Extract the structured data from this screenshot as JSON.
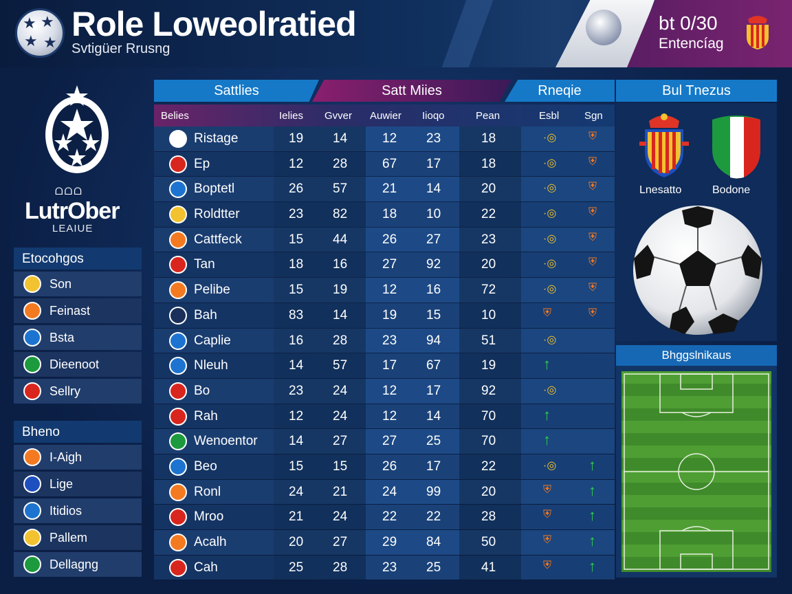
{
  "header": {
    "title": "Role Loweolratied",
    "subtitle": "Svtigüer Rrusng",
    "date": "bt 0/30",
    "status": "Entencíag"
  },
  "league": {
    "name": "LutrOber",
    "sub": "LEAIUE",
    "icons": "ᗝᗝᗝ"
  },
  "sidebar": {
    "groups": [
      {
        "title": "Etocohgos",
        "items": [
          {
            "label": "Son",
            "icon": "ring-icon",
            "color": "#f2c230"
          },
          {
            "label": "Feinast",
            "icon": "shield-icon",
            "color": "#f47a22"
          },
          {
            "label": "Bsta",
            "icon": "figure-icon",
            "color": "#1d74d0"
          },
          {
            "label": "Dieenoot",
            "icon": "flag-icon",
            "color": "#1d9a3e"
          },
          {
            "label": "Sellry",
            "icon": "badge-icon",
            "color": "#d8261e"
          }
        ]
      },
      {
        "title": "Bheno",
        "items": [
          {
            "label": "I-Aigh",
            "icon": "shield-icon",
            "color": "#f47a22"
          },
          {
            "label": "Lige",
            "icon": "flag-icon",
            "color": "#1d4fbf"
          },
          {
            "label": "Itidios",
            "icon": "ring-icon",
            "color": "#1d74d0"
          },
          {
            "label": "Pallem",
            "icon": "crest-icon",
            "color": "#f2c230"
          },
          {
            "label": "Dellagng",
            "icon": "flag-icon",
            "color": "#1d9a3e"
          }
        ]
      }
    ]
  },
  "tabs": [
    "Sattlies",
    "Satt Miies",
    "Rneqie"
  ],
  "columns": [
    "Belies",
    "Ielies",
    "Gvver",
    "Auwier",
    "Iioqo",
    "Pean",
    "Esbl",
    "Sgn"
  ],
  "rows": [
    {
      "team": "Ristage",
      "v": [
        "19",
        "14",
        "12",
        "23",
        "18"
      ],
      "m1": "dot",
      "m2": "shield",
      "c": "#ffffff"
    },
    {
      "team": "Ep",
      "v": [
        "12",
        "28",
        "67",
        "17",
        "18"
      ],
      "m1": "dot",
      "m2": "shield",
      "c": "#d8261e"
    },
    {
      "team": "Boptetl",
      "v": [
        "26",
        "57",
        "21",
        "14",
        "20"
      ],
      "m1": "dot",
      "m2": "shield",
      "c": "#1d74d0"
    },
    {
      "team": "Roldtter",
      "v": [
        "23",
        "82",
        "18",
        "10",
        "22"
      ],
      "m1": "dot",
      "m2": "shield",
      "c": "#f2c230"
    },
    {
      "team": "Cattfeck",
      "v": [
        "15",
        "44",
        "26",
        "27",
        "23"
      ],
      "m1": "dot",
      "m2": "shield",
      "c": "#f47a22"
    },
    {
      "team": "Tan",
      "v": [
        "18",
        "16",
        "27",
        "92",
        "20"
      ],
      "m1": "dot",
      "m2": "shield",
      "c": "#d8261e"
    },
    {
      "team": "Pelibe",
      "v": [
        "15",
        "19",
        "12",
        "16",
        "72"
      ],
      "m1": "dot",
      "m2": "shield",
      "c": "#f47a22"
    },
    {
      "team": "Bah",
      "v": [
        "83",
        "14",
        "19",
        "15",
        "10"
      ],
      "m1": "shield",
      "m2": "shield",
      "c": "#1a2f5a"
    },
    {
      "team": "Caplie",
      "v": [
        "16",
        "28",
        "23",
        "94",
        "51"
      ],
      "m1": "dot",
      "m2": "",
      "c": "#1d74d0"
    },
    {
      "team": "Nleuh",
      "v": [
        "14",
        "57",
        "17",
        "67",
        "19"
      ],
      "m1": "arrow",
      "m2": "",
      "c": "#1d74d0"
    },
    {
      "team": "Bo",
      "v": [
        "23",
        "24",
        "12",
        "17",
        "92"
      ],
      "m1": "dot",
      "m2": "",
      "c": "#d8261e"
    },
    {
      "team": "Rah",
      "v": [
        "12",
        "24",
        "12",
        "14",
        "70"
      ],
      "m1": "arrow",
      "m2": "",
      "c": "#d8261e"
    },
    {
      "team": "Wenoentor",
      "v": [
        "14",
        "27",
        "27",
        "25",
        "70"
      ],
      "m1": "arrow",
      "m2": "",
      "c": "#1d9a3e"
    },
    {
      "team": "Beo",
      "v": [
        "15",
        "15",
        "26",
        "17",
        "22"
      ],
      "m1": "dot",
      "m2": "arrow",
      "c": "#1d74d0"
    },
    {
      "team": "Ronl",
      "v": [
        "24",
        "21",
        "24",
        "99",
        "20"
      ],
      "m1": "shield",
      "m2": "arrow",
      "c": "#f47a22"
    },
    {
      "team": "Mroo",
      "v": [
        "21",
        "24",
        "22",
        "22",
        "28"
      ],
      "m1": "shield",
      "m2": "arrow",
      "c": "#d8261e"
    },
    {
      "team": "Acalh",
      "v": [
        "20",
        "27",
        "29",
        "84",
        "50"
      ],
      "m1": "shield",
      "m2": "arrow",
      "c": "#f47a22"
    },
    {
      "team": "Cah",
      "v": [
        "25",
        "28",
        "23",
        "25",
        "41"
      ],
      "m1": "shield",
      "m2": "arrow",
      "c": "#d8261e"
    }
  ],
  "right": {
    "title": "Bul Tnezus",
    "crest_left": "Lnesatto",
    "crest_right": "Bodone",
    "pitch_title": "Bhggslnikaus"
  }
}
